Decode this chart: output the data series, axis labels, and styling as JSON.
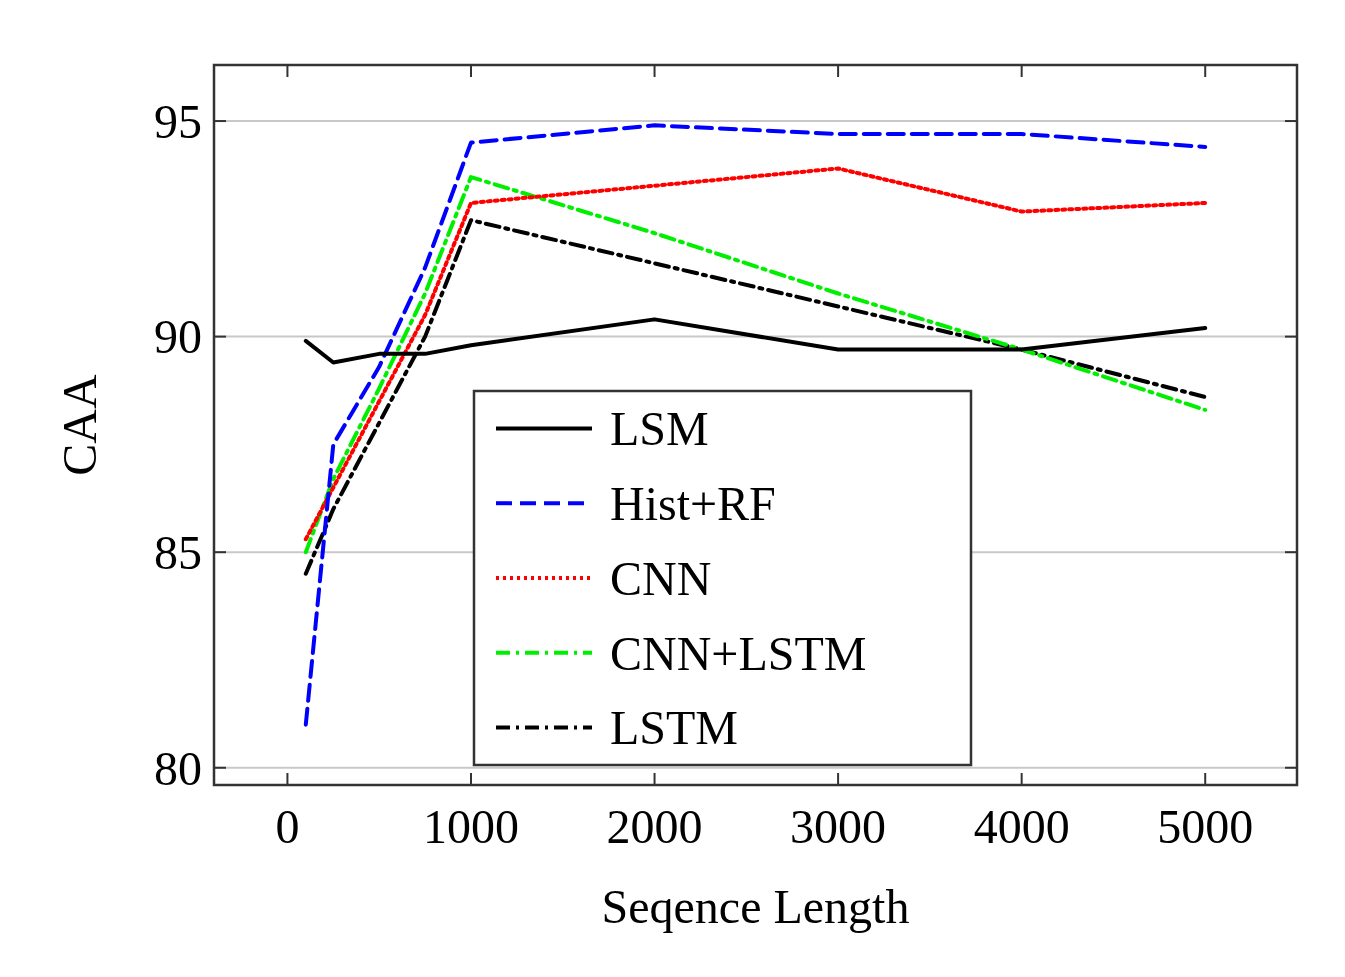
{
  "chart_data": {
    "type": "line",
    "xlabel": "Seqence Length",
    "ylabel": "CAA",
    "xlim": [
      -400,
      5500
    ],
    "ylim": [
      79.6,
      96.3
    ],
    "xticks": [
      0,
      1000,
      2000,
      3000,
      4000,
      5000
    ],
    "yticks": [
      80,
      85,
      90,
      95
    ],
    "grid": "y",
    "legend": "bottom",
    "series": [
      {
        "name": "LSM",
        "color": "#000000",
        "line_style": "solid",
        "x": [
          100,
          250,
          500,
          750,
          1000,
          2000,
          3000,
          4000,
          5000
        ],
        "values": [
          89.9,
          89.4,
          89.6,
          89.6,
          89.8,
          90.4,
          89.7,
          89.7,
          90.2
        ]
      },
      {
        "name": "Hist+RF",
        "color": "#0000ff",
        "line_style": "dashed",
        "x": [
          100,
          250,
          500,
          750,
          1000,
          2000,
          3000,
          4000,
          5000
        ],
        "values": [
          81.0,
          87.5,
          89.3,
          91.6,
          94.5,
          94.9,
          94.7,
          94.7,
          94.4
        ]
      },
      {
        "name": "CNN",
        "color": "#ff0000",
        "line_style": "dotted",
        "x": [
          100,
          250,
          500,
          750,
          1000,
          2000,
          3000,
          4000,
          5000
        ],
        "values": [
          85.3,
          86.5,
          88.5,
          90.5,
          93.1,
          93.5,
          93.9,
          92.9,
          93.1
        ]
      },
      {
        "name": "CNN+LSTM",
        "color": "#00ee00",
        "line_style": "dashdot",
        "x": [
          100,
          250,
          500,
          750,
          1000,
          2000,
          3000,
          4000,
          5000
        ],
        "values": [
          85.0,
          86.7,
          88.8,
          91.0,
          93.7,
          92.4,
          91.0,
          89.7,
          88.3
        ]
      },
      {
        "name": "LSTM",
        "color": "#000000",
        "line_style": "dashdot",
        "x": [
          100,
          250,
          500,
          750,
          1000,
          2000,
          3000,
          4000,
          5000
        ],
        "values": [
          84.5,
          86.0,
          88.0,
          90.0,
          92.7,
          91.7,
          90.7,
          89.7,
          88.6
        ]
      }
    ]
  }
}
